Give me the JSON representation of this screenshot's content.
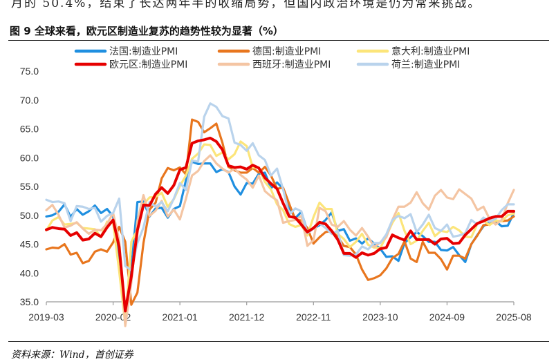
{
  "page": {
    "prev_text": "月的 50.4%，结束了长达两年半的收缩局势，但国内政治环境是仍为常来挑战。",
    "figure_title": "图 9  全球来看，欧元区制造业复苏的趋势性较为显著（%）",
    "source": "资料来源：Wind，首创证券"
  },
  "chart_data": {
    "type": "line",
    "title": "全球来看，欧元区制造业复苏的趋势性较为显著（%）",
    "xlabel": "",
    "ylabel": "",
    "ylim": [
      35,
      75
    ],
    "yticks": [
      "75.0",
      "70.0",
      "65.0",
      "60.0",
      "55.0",
      "50.0",
      "45.0",
      "40.0",
      "35.0"
    ],
    "xticks": [
      "2019-03",
      "2020-02",
      "2021-01",
      "2021-12",
      "2022-11",
      "2023-10",
      "2024-09",
      "2025-08"
    ],
    "x_start_month": "2019-03",
    "n_months": 78,
    "legend_position": "top",
    "series": [
      {
        "name": "法国:制造业PMI",
        "color": "#1f8fe0",
        "width": 3.2,
        "values": [
          49.8,
          50.0,
          50.6,
          51.9,
          49.7,
          51.1,
          50.1,
          50.7,
          51.7,
          50.4,
          51.1,
          49.8,
          43.2,
          31.5,
          40.6,
          52.3,
          52.4,
          49.8,
          51.2,
          51.3,
          49.6,
          51.1,
          51.6,
          56.1,
          59.3,
          58.9,
          59.0,
          59.0,
          57.5,
          58.0,
          57.5,
          55.0,
          53.6,
          55.6,
          55.5,
          57.2,
          57.4,
          54.7,
          55.7,
          54.6,
          51.4,
          49.5,
          50.6,
          47.2,
          47.7,
          48.3,
          49.2,
          50.5,
          47.3,
          47.6,
          45.6,
          46.0,
          45.1,
          46.0,
          45.1,
          44.2,
          42.8,
          42.9,
          42.1,
          45.2,
          46.2,
          47.1,
          46.4,
          45.4,
          45.4,
          44.0,
          43.9,
          44.5,
          43.1,
          41.9,
          45.0,
          46.6,
          48.1,
          48.9,
          49.0,
          48.1,
          48.2,
          50.4
        ]
      },
      {
        "name": "德国:制造业PMI",
        "color": "#e8761e",
        "width": 3.2,
        "values": [
          44.1,
          44.4,
          44.3,
          45.0,
          43.2,
          43.5,
          41.7,
          42.1,
          43.7,
          44.1,
          43.7,
          45.3,
          48.0,
          45.4,
          34.5,
          36.6,
          45.2,
          51.0,
          52.2,
          56.4,
          58.2,
          57.8,
          58.3,
          57.1,
          66.6,
          66.2,
          64.4,
          65.1,
          65.9,
          62.6,
          58.4,
          57.8,
          57.4,
          57.4,
          58.2,
          57.4,
          58.4,
          56.9,
          54.6,
          54.8,
          52.0,
          49.3,
          49.1,
          47.8,
          45.1,
          46.2,
          47.1,
          47.3,
          46.3,
          44.7,
          44.5,
          43.2,
          40.6,
          38.8,
          39.1,
          39.6,
          40.8,
          42.6,
          43.3,
          45.5,
          42.5,
          41.9,
          45.4,
          43.5,
          43.5,
          42.4,
          40.6,
          43.0,
          43.0,
          42.5,
          45.0,
          46.5,
          48.3,
          48.4,
          49.0,
          49.0,
          49.1,
          49.8
        ]
      },
      {
        "name": "意大利:制造业PMI",
        "color": "#fce57a",
        "width": 3.2,
        "values": [
          47.4,
          49.1,
          49.7,
          48.4,
          48.5,
          48.7,
          47.8,
          47.7,
          47.6,
          46.2,
          48.9,
          48.7,
          40.3,
          31.1,
          45.4,
          47.5,
          51.9,
          53.1,
          53.2,
          53.9,
          51.5,
          52.8,
          55.1,
          56.9,
          59.8,
          60.7,
          62.3,
          62.2,
          60.3,
          60.9,
          59.7,
          60.6,
          62.8,
          62.0,
          58.3,
          58.3,
          55.8,
          54.5,
          51.9,
          50.9,
          48.5,
          48.0,
          48.3,
          46.5,
          49.7,
          52.2,
          51.1,
          51.1,
          46.8,
          45.9,
          44.5,
          45.4,
          46.8,
          44.9,
          44.4,
          44.3,
          46.4,
          48.7,
          50.4,
          47.3,
          45.0,
          45.6,
          47.3,
          48.7,
          46.4,
          47.3,
          47.1,
          48.0,
          47.4,
          46.3,
          46.2,
          48.5,
          49.1,
          48.3,
          49.1,
          49.0,
          50.0,
          50.3
        ]
      },
      {
        "name": "欧元区:制造业PMI",
        "color": "#e60000",
        "width": 4.0,
        "values": [
          47.5,
          47.9,
          47.7,
          47.6,
          46.5,
          47.0,
          45.7,
          45.9,
          46.9,
          46.3,
          47.9,
          49.2,
          44.5,
          33.4,
          39.4,
          47.4,
          51.8,
          51.7,
          53.7,
          54.8,
          53.8,
          55.2,
          57.9,
          58.3,
          62.5,
          62.9,
          63.1,
          63.4,
          62.8,
          61.4,
          58.6,
          58.3,
          58.4,
          58.0,
          58.7,
          58.2,
          56.5,
          55.5,
          54.6,
          52.1,
          49.8,
          49.6,
          48.4,
          47.1,
          47.8,
          48.8,
          48.5,
          47.3,
          45.8,
          43.4,
          43.4,
          42.7,
          43.5,
          43.1,
          43.4,
          44.2,
          44.4,
          46.6,
          46.1,
          45.7,
          47.3,
          45.8,
          45.8,
          45.8,
          45.0,
          45.9,
          46.0,
          45.1,
          45.2,
          46.6,
          47.6,
          48.6,
          49.0,
          49.5,
          49.8,
          49.8,
          50.7,
          50.7
        ]
      },
      {
        "name": "西班牙:制造业PMI",
        "color": "#f4c5a3",
        "width": 3.2,
        "values": [
          50.9,
          51.8,
          50.1,
          47.9,
          48.2,
          48.8,
          47.7,
          46.8,
          47.5,
          47.4,
          48.5,
          50.4,
          45.7,
          30.8,
          38.3,
          49.0,
          53.5,
          49.9,
          50.8,
          52.5,
          49.8,
          51.0,
          49.3,
          52.9,
          56.9,
          57.7,
          59.4,
          60.4,
          59.0,
          58.1,
          57.4,
          58.1,
          57.0,
          56.2,
          54.8,
          56.9,
          54.2,
          53.3,
          52.6,
          48.7,
          49.0,
          49.2,
          49.9,
          44.7,
          45.7,
          51.3,
          50.7,
          48.4,
          48.0,
          49.0,
          47.5,
          46.5,
          47.8,
          46.3,
          44.5,
          45.3,
          46.2,
          49.2,
          51.5,
          51.5,
          52.2,
          54.0,
          52.1,
          51.0,
          53.4,
          54.4,
          53.1,
          52.8,
          54.5,
          53.7,
          52.9,
          50.9,
          51.5,
          49.4,
          48.4,
          49.2,
          52.1,
          54.4
        ]
      },
      {
        "name": "荷兰:制造业PMI",
        "color": "#b9d3ec",
        "width": 3.2,
        "values": [
          52.7,
          52.3,
          52.4,
          52.1,
          49.0,
          51.6,
          51.5,
          51.1,
          51.3,
          48.9,
          49.9,
          50.4,
          52.9,
          41.2,
          40.5,
          45.2,
          47.9,
          52.3,
          51.5,
          52.3,
          50.7,
          52.9,
          55.6,
          54.4,
          59.5,
          59.3,
          67.1,
          69.4,
          68.8,
          67.2,
          66.8,
          62.6,
          62.2,
          61.2,
          62.5,
          60.4,
          59.6,
          56.9,
          58.1,
          54.5,
          50.1,
          51.2,
          50.7,
          46.9,
          47.7,
          48.6,
          47.8,
          46.8,
          47.3,
          43.1,
          43.0,
          43.2,
          44.6,
          44.1,
          45.2,
          45.2,
          46.7,
          49.2,
          49.9,
          49.5,
          50.2,
          47.1,
          48.4,
          50.1,
          47.8,
          47.3,
          48.4,
          46.3,
          46.5,
          46.9,
          49.2,
          48.4,
          49.6,
          48.9,
          49.4,
          50.9,
          51.9,
          51.9
        ]
      }
    ]
  }
}
